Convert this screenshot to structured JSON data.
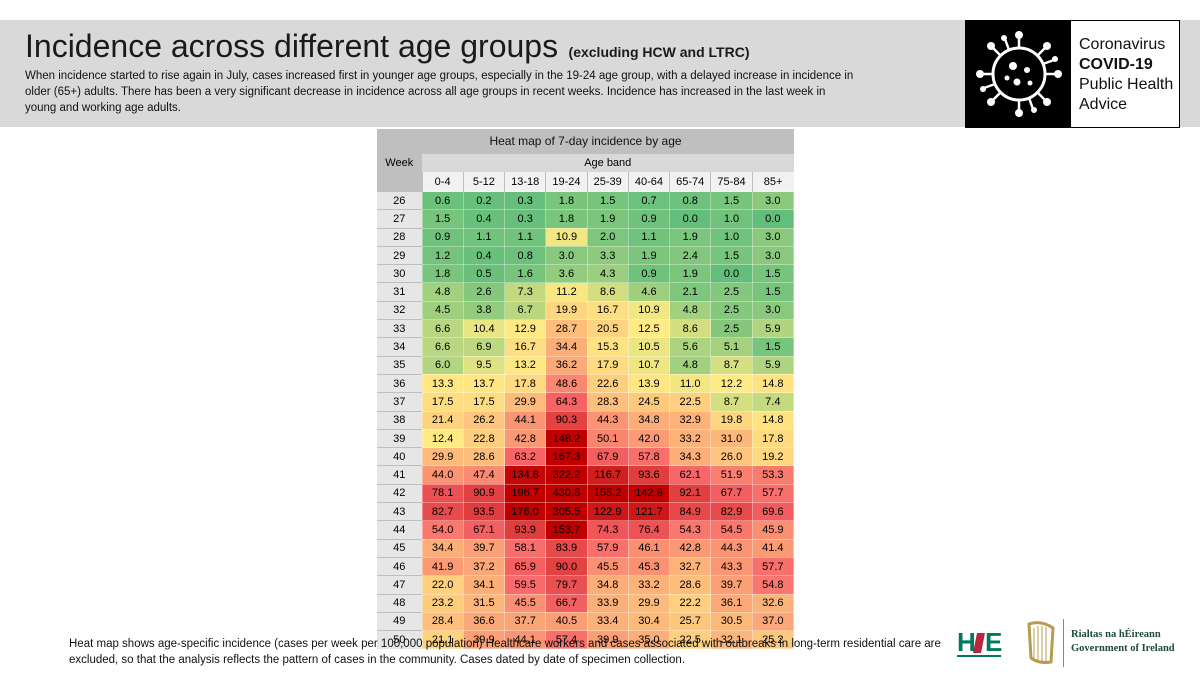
{
  "header": {
    "title": "Incidence across different age groups",
    "title_note": "(excluding HCW and LTRC)",
    "subtitle": "When incidence started to rise again in July, cases increased first in younger age groups, especially in the 19-24 age group, with a delayed increase in incidence in older (65+) adults. There has been a very significant decrease in incidence across all age groups in recent weeks. Incidence has increased in the last week in young and working age adults."
  },
  "covid_badge": {
    "icon": "coronavirus-icon",
    "line1": "Coronavirus",
    "line2": "COVID-19",
    "line3": "Public Health",
    "line4": "Advice"
  },
  "footer": {
    "note": "Heat map shows age-specific incidence (cases per week per 100,000 population) Healthcare workers and cases associated with outbreaks in long-term residential care are excluded, so that the analysis reflects the pattern of cases in the community. Cases dated by date of specimen collection.",
    "hse_logo": "HSE",
    "gov_line1": "Rialtas na hÉireann",
    "gov_line2": "Government of Ireland"
  },
  "chart_data": {
    "type": "heatmap",
    "title": "Heat map of 7-day incidence by age",
    "row_header": "Week",
    "col_header": "Age band",
    "columns": [
      "0-4",
      "5-12",
      "13-18",
      "19-24",
      "25-39",
      "40-64",
      "65-74",
      "75-84",
      "85+"
    ],
    "rows": [
      {
        "week": "26",
        "values": [
          0.6,
          0.2,
          0.3,
          1.8,
          1.5,
          0.7,
          0.8,
          1.5,
          3.0
        ]
      },
      {
        "week": "27",
        "values": [
          1.5,
          0.4,
          0.3,
          1.8,
          1.9,
          0.9,
          0.0,
          1.0,
          0.0
        ]
      },
      {
        "week": "28",
        "values": [
          0.9,
          1.1,
          1.1,
          10.9,
          2.0,
          1.1,
          1.9,
          1.0,
          3.0
        ]
      },
      {
        "week": "29",
        "values": [
          1.2,
          0.4,
          0.8,
          3.0,
          3.3,
          1.9,
          2.4,
          1.5,
          3.0
        ]
      },
      {
        "week": "30",
        "values": [
          1.8,
          0.5,
          1.6,
          3.6,
          4.3,
          0.9,
          1.9,
          0.0,
          1.5
        ]
      },
      {
        "week": "31",
        "values": [
          4.8,
          2.6,
          7.3,
          11.2,
          8.6,
          4.6,
          2.1,
          2.5,
          1.5
        ]
      },
      {
        "week": "32",
        "values": [
          4.5,
          3.8,
          6.7,
          19.9,
          16.7,
          10.9,
          4.8,
          2.5,
          3.0
        ]
      },
      {
        "week": "33",
        "values": [
          6.6,
          10.4,
          12.9,
          28.7,
          20.5,
          12.5,
          8.6,
          2.5,
          5.9
        ]
      },
      {
        "week": "34",
        "values": [
          6.6,
          6.9,
          16.7,
          34.4,
          15.3,
          10.5,
          5.6,
          5.1,
          1.5
        ]
      },
      {
        "week": "35",
        "values": [
          6.0,
          9.5,
          13.2,
          36.2,
          17.9,
          10.7,
          4.8,
          8.7,
          5.9
        ]
      },
      {
        "week": "36",
        "values": [
          13.3,
          13.7,
          17.8,
          48.6,
          22.6,
          13.9,
          11.0,
          12.2,
          14.8
        ]
      },
      {
        "week": "37",
        "values": [
          17.5,
          17.5,
          29.9,
          64.3,
          28.3,
          24.5,
          22.5,
          8.7,
          7.4
        ]
      },
      {
        "week": "38",
        "values": [
          21.4,
          26.2,
          44.1,
          90.3,
          44.3,
          34.8,
          32.9,
          19.8,
          14.8
        ]
      },
      {
        "week": "39",
        "values": [
          12.4,
          22.8,
          42.8,
          148.2,
          50.1,
          42.0,
          33.2,
          31.0,
          17.8
        ]
      },
      {
        "week": "40",
        "values": [
          29.9,
          28.6,
          63.2,
          167.3,
          67.9,
          57.8,
          34.3,
          26.0,
          19.2
        ]
      },
      {
        "week": "41",
        "values": [
          44.0,
          47.4,
          134.8,
          322.2,
          116.7,
          93.6,
          62.1,
          51.9,
          53.3
        ]
      },
      {
        "week": "42",
        "values": [
          78.1,
          90.9,
          196.7,
          430.8,
          155.2,
          142.9,
          92.1,
          67.7,
          57.7
        ]
      },
      {
        "week": "43",
        "values": [
          82.7,
          93.5,
          176.0,
          305.5,
          122.9,
          121.7,
          84.9,
          82.9,
          69.6
        ]
      },
      {
        "week": "44",
        "values": [
          54.0,
          67.1,
          93.9,
          153.7,
          74.3,
          76.4,
          54.3,
          54.5,
          45.9
        ]
      },
      {
        "week": "45",
        "values": [
          34.4,
          39.7,
          58.1,
          83.9,
          57.9,
          46.1,
          42.8,
          44.3,
          41.4
        ]
      },
      {
        "week": "46",
        "values": [
          41.9,
          37.2,
          65.9,
          90.0,
          45.5,
          45.3,
          32.7,
          43.3,
          57.7
        ]
      },
      {
        "week": "47",
        "values": [
          22.0,
          34.1,
          59.5,
          79.7,
          34.8,
          33.2,
          28.6,
          39.7,
          54.8
        ]
      },
      {
        "week": "48",
        "values": [
          23.2,
          31.5,
          45.5,
          66.7,
          33.9,
          29.9,
          22.2,
          36.1,
          32.6
        ]
      },
      {
        "week": "49",
        "values": [
          28.4,
          36.6,
          37.7,
          40.5,
          33.4,
          30.4,
          25.7,
          30.5,
          37.0
        ]
      },
      {
        "week": "50",
        "values": [
          21.1,
          39.9,
          44.1,
          57.4,
          39.9,
          35.0,
          22.5,
          32.1,
          25.2
        ]
      }
    ],
    "color_scale": [
      "#63be7b",
      "#ffeb84",
      "#f8696b",
      "#c00000"
    ],
    "legend": "none",
    "grid": true
  }
}
